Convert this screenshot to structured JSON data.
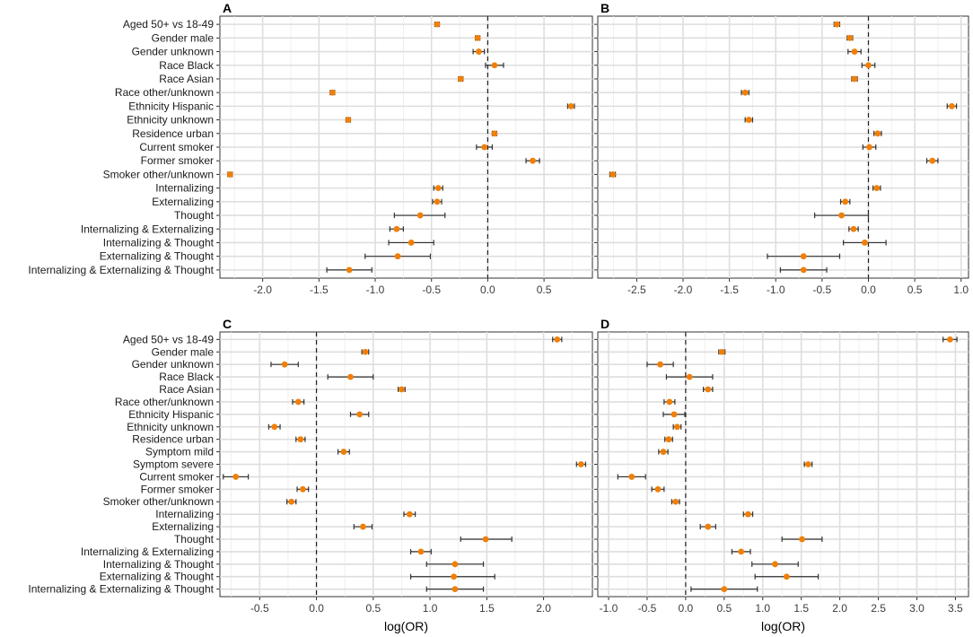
{
  "colors": {
    "point": "#f07f09",
    "ci": "#333333",
    "grid": "#dedede",
    "frame": "#333333"
  },
  "chart_data": [
    {
      "type": "scatter",
      "panel": "A",
      "xlabel": "",
      "xlim": [
        -2.38,
        0.93
      ],
      "xticks": [
        -2.0,
        -1.5,
        -1.0,
        -0.5,
        0.0,
        0.5
      ],
      "xtick_labels": [
        "-2.0",
        "-1.5",
        "-1.0",
        "-0.5",
        "0.0",
        "0.5"
      ],
      "reference_line": 0,
      "categories": [
        "Aged 50+ vs 18-49",
        "Gender male",
        "Gender unknown",
        "Race Black",
        "Race Asian",
        "Race other/unknown",
        "Ethnicity Hispanic",
        "Ethnicity unknown",
        "Residence urban",
        "Current smoker",
        "Former smoker",
        "Smoker other/unknown",
        "Internalizing",
        "Externalizing",
        "Thought",
        "Internalizing & Externalizing",
        "Internalizing & Thought",
        "Externalizing & Thought",
        "Internalizing & Externalizing & Thought"
      ],
      "estimates": [
        -0.45,
        -0.09,
        -0.08,
        0.06,
        -0.24,
        -1.38,
        0.74,
        -1.24,
        0.06,
        -0.03,
        0.4,
        -2.29,
        -0.44,
        -0.45,
        -0.6,
        -0.81,
        -0.68,
        -0.8,
        -1.23
      ],
      "lower": [
        -0.47,
        -0.11,
        -0.13,
        -0.02,
        -0.26,
        -1.4,
        0.71,
        -1.26,
        0.04,
        -0.1,
        0.34,
        -2.31,
        -0.48,
        -0.49,
        -0.83,
        -0.87,
        -0.88,
        -1.09,
        -1.43
      ],
      "upper": [
        -0.43,
        -0.07,
        -0.03,
        0.14,
        -0.22,
        -1.36,
        0.77,
        -1.22,
        0.08,
        0.04,
        0.46,
        -2.27,
        -0.4,
        -0.41,
        -0.38,
        -0.75,
        -0.48,
        -0.51,
        -1.03
      ]
    },
    {
      "type": "scatter",
      "panel": "B",
      "xlabel": "",
      "xlim": [
        -2.92,
        1.08
      ],
      "xticks": [
        -2.5,
        -2.0,
        -1.5,
        -1.0,
        -0.5,
        0.0,
        0.5,
        1.0
      ],
      "xtick_labels": [
        "-2.5",
        "-2.0",
        "-1.5",
        "-1.0",
        "-0.5",
        "0.0",
        "0.5",
        "1.0"
      ],
      "reference_line": 0,
      "categories": [
        "Aged 50+ vs 18-49",
        "Gender male",
        "Gender unknown",
        "Race Black",
        "Race Asian",
        "Race other/unknown",
        "Ethnicity Hispanic",
        "Ethnicity unknown",
        "Residence urban",
        "Current smoker",
        "Former smoker",
        "Smoker other/unknown",
        "Internalizing",
        "Externalizing",
        "Thought",
        "Internalizing & Externalizing",
        "Internalizing & Thought",
        "Externalizing & Thought",
        "Internalizing & Externalizing & Thought"
      ],
      "estimates": [
        -0.34,
        -0.2,
        -0.15,
        0.0,
        -0.15,
        -1.33,
        0.9,
        -1.29,
        0.1,
        0.01,
        0.69,
        -2.76,
        0.09,
        -0.25,
        -0.29,
        -0.16,
        -0.04,
        -0.7,
        -0.7
      ],
      "lower": [
        -0.37,
        -0.23,
        -0.22,
        -0.07,
        -0.18,
        -1.37,
        0.85,
        -1.33,
        0.06,
        -0.06,
        0.63,
        -2.79,
        0.05,
        -0.3,
        -0.58,
        -0.21,
        -0.27,
        -1.09,
        -0.95
      ],
      "upper": [
        -0.31,
        -0.17,
        -0.08,
        0.07,
        -0.12,
        -1.29,
        0.95,
        -1.25,
        0.14,
        0.08,
        0.75,
        -2.73,
        0.13,
        -0.2,
        0.0,
        -0.11,
        0.19,
        -0.31,
        -0.45
      ]
    },
    {
      "type": "scatter",
      "panel": "C",
      "xlabel": "log(OR)",
      "xlim": [
        -0.85,
        2.43
      ],
      "xticks": [
        -0.5,
        0.0,
        0.5,
        1.0,
        1.5,
        2.0
      ],
      "xtick_labels": [
        "-0.5",
        "0.0",
        "0.5",
        "1.0",
        "1.5",
        "2.0"
      ],
      "reference_line": 0,
      "categories": [
        "Aged 50+ vs 18-49",
        "Gender male",
        "Gender unknown",
        "Race Black",
        "Race Asian",
        "Race other/unknown",
        "Ethnicity Hispanic",
        "Ethnicity unknown",
        "Residence urban",
        "Symptom mild",
        "Symptom severe",
        "Current smoker",
        "Former smoker",
        "Smoker other/unknown",
        "Internalizing",
        "Externalizing",
        "Thought",
        "Internalizing & Externalizing",
        "Internalizing & Thought",
        "Externalizing & Thought",
        "Internalizing & Externalizing & Thought"
      ],
      "estimates": [
        2.12,
        0.43,
        -0.28,
        0.3,
        0.75,
        -0.16,
        0.38,
        -0.37,
        -0.14,
        0.24,
        2.33,
        -0.71,
        -0.12,
        -0.22,
        0.82,
        0.41,
        1.49,
        0.92,
        1.22,
        1.21,
        1.22
      ],
      "lower": [
        2.08,
        0.4,
        -0.4,
        0.1,
        0.72,
        -0.21,
        0.3,
        -0.42,
        -0.18,
        0.19,
        2.29,
        -0.82,
        -0.17,
        -0.26,
        0.77,
        0.33,
        1.27,
        0.83,
        0.97,
        0.83,
        0.97
      ],
      "upper": [
        2.16,
        0.46,
        -0.16,
        0.5,
        0.78,
        -0.11,
        0.46,
        -0.32,
        -0.1,
        0.29,
        2.37,
        -0.6,
        -0.07,
        -0.18,
        0.87,
        0.49,
        1.72,
        1.01,
        1.47,
        1.57,
        1.47
      ]
    },
    {
      "type": "scatter",
      "panel": "D",
      "xlabel": "log(OR)",
      "xlim": [
        -1.14,
        3.67
      ],
      "xticks": [
        -1.0,
        -0.5,
        0.0,
        0.5,
        1.0,
        1.5,
        2.0,
        2.5,
        3.0,
        3.5
      ],
      "xtick_labels": [
        "-1.0",
        "-0.5",
        "0.0",
        "0.5",
        "1.0",
        "1.5",
        "2.0",
        "2.5",
        "3.0",
        "3.5"
      ],
      "reference_line": 0,
      "categories": [
        "Aged 50+ vs 18-49",
        "Gender male",
        "Gender unknown",
        "Race Black",
        "Race Asian",
        "Race other/unknown",
        "Ethnicity Hispanic",
        "Ethnicity unknown",
        "Residence urban",
        "Symptom mild",
        "Symptom severe",
        "Current smoker",
        "Former smoker",
        "Smoker other/unknown",
        "Internalizing",
        "Externalizing",
        "Thought",
        "Internalizing & Externalizing",
        "Internalizing & Thought",
        "Externalizing & Thought",
        "Internalizing & Externalizing & Thought"
      ],
      "estimates": [
        3.43,
        0.47,
        -0.33,
        0.05,
        0.29,
        -0.21,
        -0.15,
        -0.11,
        -0.22,
        -0.29,
        1.59,
        -0.7,
        -0.36,
        -0.13,
        0.81,
        0.29,
        1.51,
        0.72,
        1.16,
        1.31,
        0.5
      ],
      "lower": [
        3.34,
        0.43,
        -0.5,
        -0.25,
        0.23,
        -0.28,
        -0.29,
        -0.16,
        -0.27,
        -0.35,
        1.54,
        -0.88,
        -0.44,
        -0.18,
        0.75,
        0.19,
        1.25,
        0.6,
        0.86,
        0.9,
        0.07
      ],
      "upper": [
        3.52,
        0.51,
        -0.16,
        0.35,
        0.35,
        -0.14,
        -0.01,
        -0.06,
        -0.17,
        -0.23,
        1.64,
        -0.52,
        -0.28,
        -0.08,
        0.87,
        0.39,
        1.77,
        0.84,
        1.46,
        1.72,
        0.93
      ]
    }
  ]
}
